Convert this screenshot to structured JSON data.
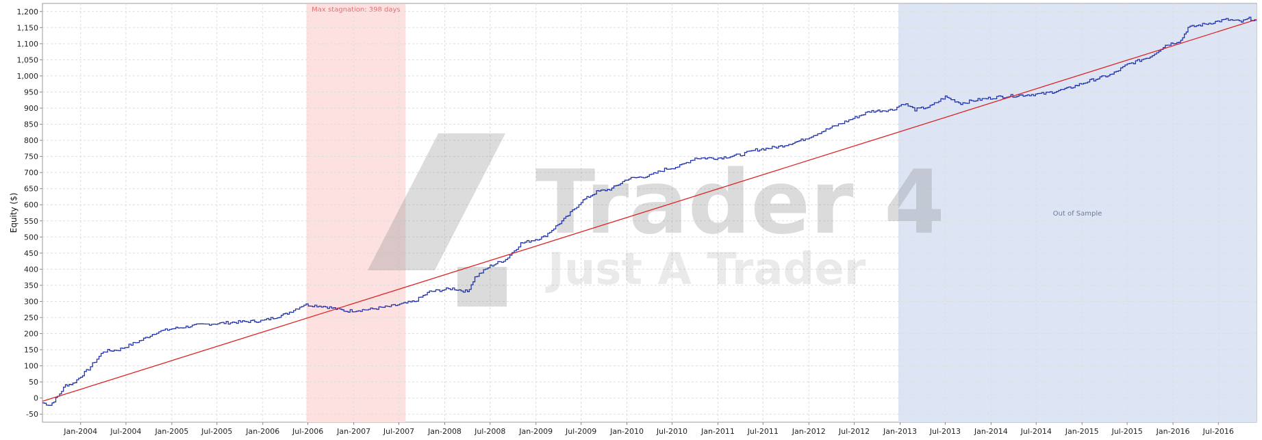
{
  "chart_data": {
    "type": "line",
    "ylabel": "Equity ($)",
    "ylim": [
      -75,
      1225
    ],
    "yticks": [
      -50,
      0,
      50,
      100,
      150,
      200,
      250,
      300,
      350,
      400,
      450,
      500,
      550,
      600,
      650,
      700,
      750,
      800,
      850,
      900,
      950,
      1000,
      1050,
      1100,
      1150,
      1200
    ],
    "ytick_labels": [
      "-50",
      "0",
      "50",
      "100",
      "150",
      "200",
      "250",
      "300",
      "350",
      "400",
      "450",
      "500",
      "550",
      "600",
      "650",
      "700",
      "750",
      "800",
      "850",
      "900",
      "950",
      "1,000",
      "1,050",
      "1,100",
      "1,150",
      "1,200"
    ],
    "xlim": [
      "2003-08-01",
      "2016-12-01"
    ],
    "xticks": [
      {
        "date": "2004-01-01",
        "label": "Jan-2004"
      },
      {
        "date": "2004-07-01",
        "label": "Jul-2004"
      },
      {
        "date": "2005-01-01",
        "label": "Jan-2005"
      },
      {
        "date": "2005-07-01",
        "label": "Jul-2005"
      },
      {
        "date": "2006-01-01",
        "label": "Jan-2006"
      },
      {
        "date": "2006-07-01",
        "label": "Jul-2006"
      },
      {
        "date": "2007-01-01",
        "label": "Jan-2007"
      },
      {
        "date": "2007-07-01",
        "label": "Jul-2007"
      },
      {
        "date": "2008-01-01",
        "label": "Jan-2008"
      },
      {
        "date": "2008-07-01",
        "label": "Jul-2008"
      },
      {
        "date": "2009-01-01",
        "label": "Jan-2009"
      },
      {
        "date": "2009-07-01",
        "label": "Jul-2009"
      },
      {
        "date": "2010-01-01",
        "label": "Jan-2010"
      },
      {
        "date": "2010-07-01",
        "label": "Jul-2010"
      },
      {
        "date": "2011-01-01",
        "label": "Jan-2011"
      },
      {
        "date": "2011-07-01",
        "label": "Jul-2011"
      },
      {
        "date": "2012-01-01",
        "label": "Jan-2012"
      },
      {
        "date": "2012-07-01",
        "label": "Jul-2012"
      },
      {
        "date": "2013-01-01",
        "label": "Jan-2013"
      },
      {
        "date": "2013-07-01",
        "label": "Jul-2013"
      },
      {
        "date": "2014-01-01",
        "label": "Jan-2014"
      },
      {
        "date": "2014-07-01",
        "label": "Jul-2014"
      },
      {
        "date": "2015-01-01",
        "label": "Jan-2015"
      },
      {
        "date": "2015-07-01",
        "label": "Jul-2015"
      },
      {
        "date": "2016-01-01",
        "label": "Jan-2016"
      },
      {
        "date": "2016-07-01",
        "label": "Jul-2016"
      }
    ],
    "grid": true,
    "bands": [
      {
        "name": "max-stagnation",
        "from": "2006-06-25",
        "to": "2007-07-28",
        "color": "#fde0e0",
        "label": "Max stagnation: 398 days",
        "label_color": "#e07070"
      },
      {
        "name": "out-of-sample",
        "from": "2012-12-25",
        "to": "2016-12-01",
        "color": "#dde5f5",
        "label": "Out of Sample",
        "label_color": "#6a7a90"
      }
    ],
    "series": [
      {
        "color": "#2233aa",
        "points": [
          [
            "2003-08-01",
            -15
          ],
          [
            "2003-09-01",
            -22
          ],
          [
            "2003-10-01",
            5
          ],
          [
            "2003-11-01",
            40
          ],
          [
            "2003-12-01",
            45
          ],
          [
            "2004-02-01",
            90
          ],
          [
            "2004-04-01",
            145
          ],
          [
            "2004-06-01",
            150
          ],
          [
            "2004-09-01",
            180
          ],
          [
            "2004-11-01",
            205
          ],
          [
            "2005-01-01",
            215
          ],
          [
            "2005-04-01",
            225
          ],
          [
            "2005-06-01",
            230
          ],
          [
            "2005-09-01",
            235
          ],
          [
            "2006-01-01",
            240
          ],
          [
            "2006-04-01",
            260
          ],
          [
            "2006-06-15",
            290
          ],
          [
            "2006-09-01",
            285
          ],
          [
            "2006-12-01",
            270
          ],
          [
            "2007-03-01",
            275
          ],
          [
            "2007-06-01",
            285
          ],
          [
            "2007-09-01",
            300
          ],
          [
            "2007-11-01",
            330
          ],
          [
            "2008-02-01",
            340
          ],
          [
            "2008-04-01",
            330
          ],
          [
            "2008-05-01",
            375
          ],
          [
            "2008-07-01",
            410
          ],
          [
            "2008-09-01",
            430
          ],
          [
            "2008-11-01",
            480
          ],
          [
            "2009-02-01",
            500
          ],
          [
            "2009-05-01",
            560
          ],
          [
            "2009-07-01",
            610
          ],
          [
            "2009-09-01",
            640
          ],
          [
            "2009-11-01",
            650
          ],
          [
            "2010-01-01",
            680
          ],
          [
            "2010-04-01",
            690
          ],
          [
            "2010-06-01",
            710
          ],
          [
            "2010-08-01",
            720
          ],
          [
            "2010-10-01",
            745
          ],
          [
            "2011-01-01",
            745
          ],
          [
            "2011-04-01",
            755
          ],
          [
            "2011-06-01",
            770
          ],
          [
            "2011-09-01",
            780
          ],
          [
            "2011-12-01",
            800
          ],
          [
            "2012-03-01",
            830
          ],
          [
            "2012-06-01",
            860
          ],
          [
            "2012-09-01",
            890
          ],
          [
            "2012-12-01",
            895
          ],
          [
            "2013-01-15",
            915
          ],
          [
            "2013-03-01",
            895
          ],
          [
            "2013-05-01",
            905
          ],
          [
            "2013-07-01",
            935
          ],
          [
            "2013-09-01",
            915
          ],
          [
            "2013-11-01",
            925
          ],
          [
            "2014-02-01",
            935
          ],
          [
            "2014-05-01",
            940
          ],
          [
            "2014-08-01",
            945
          ],
          [
            "2014-11-01",
            960
          ],
          [
            "2015-02-01",
            985
          ],
          [
            "2015-05-01",
            1005
          ],
          [
            "2015-07-01",
            1035
          ],
          [
            "2015-10-01",
            1060
          ],
          [
            "2015-12-01",
            1095
          ],
          [
            "2016-02-01",
            1110
          ],
          [
            "2016-03-01",
            1150
          ],
          [
            "2016-06-01",
            1165
          ],
          [
            "2016-08-01",
            1175
          ],
          [
            "2016-10-01",
            1168
          ],
          [
            "2016-11-01",
            1178
          ],
          [
            "2016-12-01",
            1172
          ]
        ]
      },
      {
        "color": "#dd2222",
        "points": [
          [
            "2003-08-01",
            -10
          ],
          [
            "2016-12-01",
            1175
          ]
        ]
      }
    ]
  },
  "watermark": {
    "line1": "Trader 4",
    "line2": "Just A Trader",
    "color": "#8a8a8a"
  }
}
